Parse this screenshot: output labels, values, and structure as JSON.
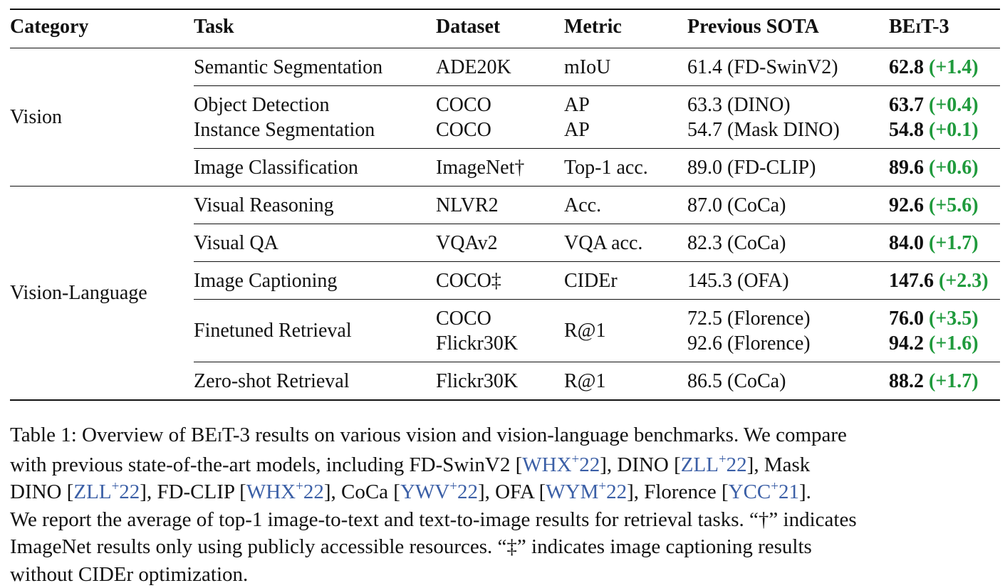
{
  "table": {
    "headers": {
      "category": "Category",
      "task": "Task",
      "dataset": "Dataset",
      "metric": "Metric",
      "previous": "Previous SOTA",
      "beit_prefix": "BE",
      "beit_smallcap": "I",
      "beit_suffix": "T-3"
    },
    "categories": {
      "vision": "Vision",
      "vision_language": "Vision-Language"
    },
    "rows": [
      {
        "task": "Semantic Segmentation",
        "dataset": "ADE20K",
        "metric": "mIoU",
        "previous": "61.4 (FD-SwinV2)",
        "score": "62.8",
        "gain": "(+1.4)"
      },
      {
        "task": "Object Detection",
        "dataset": "COCO",
        "metric": "AP",
        "previous": "63.3 (DINO)",
        "score": "63.7",
        "gain": "(+0.4)"
      },
      {
        "task": "Instance Segmentation",
        "dataset": "COCO",
        "metric": "AP",
        "previous": "54.7 (Mask DINO)",
        "score": "54.8",
        "gain": "(+0.1)"
      },
      {
        "task": "Image Classification",
        "dataset": "ImageNet†",
        "metric": "Top-1 acc.",
        "previous": "89.0 (FD-CLIP)",
        "score": "89.6",
        "gain": "(+0.6)"
      },
      {
        "task": "Visual Reasoning",
        "dataset": "NLVR2",
        "metric": "Acc.",
        "previous": "87.0 (CoCa)",
        "score": "92.6",
        "gain": "(+5.6)"
      },
      {
        "task": "Visual QA",
        "dataset": "VQAv2",
        "metric": "VQA acc.",
        "previous": "82.3 (CoCa)",
        "score": "84.0",
        "gain": "(+1.7)"
      },
      {
        "task": "Image Captioning",
        "dataset": "COCO‡",
        "metric": "CIDEr",
        "previous": "145.3 (OFA)",
        "score": "147.6",
        "gain": "(+2.3)"
      },
      {
        "task": "Finetuned Retrieval",
        "dataset": "COCO",
        "dataset2": "Flickr30K",
        "metric": "R@1",
        "previous": "72.5 (Florence)",
        "previous2": "92.6 (Florence)",
        "score": "76.0",
        "gain": "(+3.5)",
        "score2": "94.2",
        "gain2": "(+1.6)"
      },
      {
        "task": "Zero-shot Retrieval",
        "dataset": "Flickr30K",
        "metric": "R@1",
        "previous": "86.5 (CoCa)",
        "score": "88.2",
        "gain": "(+1.7)"
      }
    ]
  },
  "caption": {
    "l1_a": "Table 1: Overview of BE",
    "l1_sc": "I",
    "l1_b": "T-3 results on various vision and vision-language benchmarks. We compare",
    "l2_a": "with previous state-of-the-art models, including FD-SwinV2 [",
    "cite_whx": "WHX",
    "cite_zll": "ZLL",
    "cite_ywv": "YWV",
    "cite_wym": "WYM",
    "cite_ycc": "YCC",
    "plus": "+",
    "y22": "22",
    "y21": "21",
    "l2_b": "], DINO [",
    "l2_c": "], Mask",
    "l3_a": "DINO [",
    "l3_b": "], FD-CLIP [",
    "l3_c": "], CoCa [",
    "l3_d": "], OFA [",
    "l3_e": "], Florence [",
    "l3_f": "].",
    "l4": "We report the average of top-1 image-to-text and text-to-image results for retrieval tasks. “†” indicates",
    "l5": "ImageNet results only using publicly accessible resources. “‡” indicates image captioning results",
    "l6": "without CIDEr optimization."
  }
}
